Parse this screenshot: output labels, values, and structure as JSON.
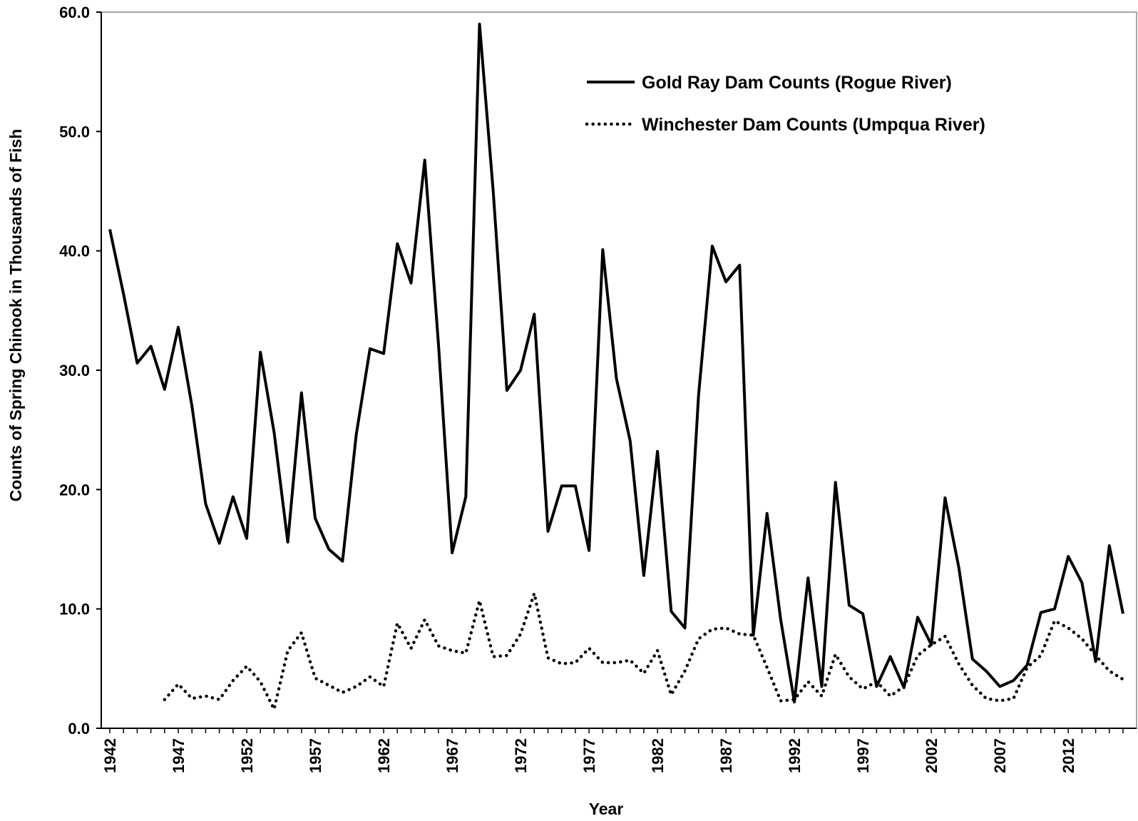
{
  "chart_data": {
    "type": "line",
    "title": "",
    "xlabel": "Year",
    "ylabel": "Counts of Spring Chinook in Thousands of Fish",
    "xlim": [
      1942,
      2016
    ],
    "ylim": [
      0,
      60
    ],
    "yticks": [
      "0.0",
      "10.0",
      "20.0",
      "30.0",
      "40.0",
      "50.0",
      "60.0"
    ],
    "xticks": [
      "1942",
      "1947",
      "1952",
      "1957",
      "1962",
      "1967",
      "1972",
      "1977",
      "1982",
      "1987",
      "1992",
      "1997",
      "2002",
      "2007",
      "2012"
    ],
    "grid": false,
    "legend_position": "top-right",
    "series": [
      {
        "name": "Gold Ray Dam Counts (Rogue River)",
        "style": "solid",
        "x": [
          1942,
          1943,
          1944,
          1945,
          1946,
          1947,
          1948,
          1949,
          1950,
          1951,
          1952,
          1953,
          1954,
          1955,
          1956,
          1957,
          1958,
          1959,
          1960,
          1961,
          1962,
          1963,
          1964,
          1965,
          1966,
          1967,
          1968,
          1969,
          1970,
          1971,
          1972,
          1973,
          1974,
          1975,
          1976,
          1977,
          1978,
          1979,
          1980,
          1981,
          1982,
          1983,
          1984,
          1985,
          1986,
          1987,
          1988,
          1989,
          1990,
          1991,
          1992,
          1993,
          1994,
          1995,
          1996,
          1997,
          1998,
          1999,
          2000,
          2001,
          2002,
          2003,
          2004,
          2005,
          2006,
          2007,
          2008,
          2009,
          2010,
          2011,
          2012,
          2013,
          2014,
          2015,
          2016
        ],
        "values": [
          41.8,
          36.4,
          30.6,
          32.0,
          28.4,
          33.6,
          27.0,
          18.8,
          15.5,
          19.4,
          15.9,
          31.5,
          24.8,
          15.6,
          28.1,
          17.6,
          15.0,
          14.0,
          24.6,
          31.8,
          31.4,
          40.6,
          37.3,
          47.6,
          32.2,
          14.7,
          19.4,
          59.0,
          45.0,
          28.3,
          30.0,
          34.7,
          16.5,
          20.3,
          20.3,
          14.9,
          40.1,
          29.3,
          24.1,
          12.8,
          23.2,
          9.8,
          8.4,
          27.9,
          40.4,
          37.4,
          38.8,
          7.8,
          18.0,
          9.1,
          2.2,
          12.6,
          3.5,
          20.6,
          10.3,
          9.6,
          3.5,
          6.0,
          3.4,
          9.3,
          7.0,
          19.3,
          13.5,
          5.8,
          4.8,
          3.5,
          4.0,
          5.3,
          9.7,
          10.0,
          14.4,
          12.2,
          5.6,
          15.3,
          9.6
        ]
      },
      {
        "name": "Winchester Dam Counts (Umpqua River)",
        "style": "dotted",
        "x": [
          1946,
          1947,
          1948,
          1949,
          1950,
          1951,
          1952,
          1953,
          1954,
          1955,
          1956,
          1957,
          1958,
          1959,
          1960,
          1961,
          1962,
          1963,
          1964,
          1965,
          1966,
          1967,
          1968,
          1969,
          1970,
          1971,
          1972,
          1973,
          1974,
          1975,
          1976,
          1977,
          1978,
          1979,
          1980,
          1981,
          1982,
          1983,
          1984,
          1985,
          1986,
          1987,
          1988,
          1989,
          1990,
          1991,
          1992,
          1993,
          1994,
          1995,
          1996,
          1997,
          1998,
          1999,
          2000,
          2001,
          2002,
          2003,
          2004,
          2005,
          2006,
          2007,
          2008,
          2009,
          2010,
          2011,
          2012,
          2013,
          2014,
          2015,
          2016
        ],
        "values": [
          2.4,
          3.7,
          2.5,
          2.7,
          2.4,
          4.0,
          5.2,
          3.9,
          1.6,
          6.5,
          8.0,
          4.2,
          3.6,
          3.0,
          3.5,
          4.3,
          3.5,
          8.8,
          6.7,
          9.1,
          6.9,
          6.5,
          6.3,
          10.7,
          6.0,
          6.1,
          7.9,
          11.3,
          5.9,
          5.4,
          5.5,
          6.7,
          5.5,
          5.5,
          5.7,
          4.6,
          6.5,
          2.8,
          4.8,
          7.5,
          8.3,
          8.4,
          7.9,
          7.8,
          5.1,
          2.3,
          2.4,
          3.9,
          2.7,
          6.2,
          4.3,
          3.3,
          3.9,
          2.7,
          3.5,
          6.1,
          7.0,
          7.7,
          5.4,
          3.6,
          2.5,
          2.3,
          2.5,
          5.1,
          6.1,
          9.0,
          8.4,
          7.5,
          6.1,
          4.8,
          4.1
        ]
      }
    ]
  }
}
